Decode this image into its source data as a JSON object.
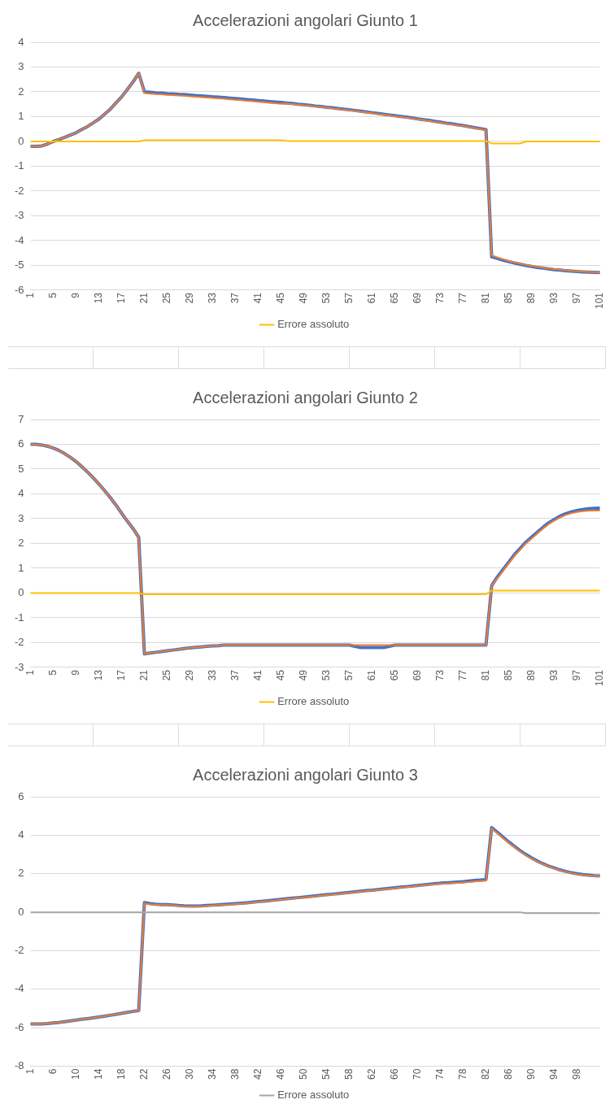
{
  "chart_data": [
    {
      "type": "line",
      "title": "Accelerazioni angolari Giunto 1",
      "categories": [
        "1",
        null,
        null,
        null,
        "5",
        null,
        null,
        null,
        "9",
        null,
        null,
        null,
        "13",
        null,
        null,
        null,
        "17",
        null,
        null,
        null,
        "21",
        null,
        null,
        null,
        "25",
        null,
        null,
        null,
        "29",
        null,
        null,
        null,
        "33",
        null,
        null,
        null,
        "37",
        null,
        null,
        null,
        "41",
        null,
        null,
        null,
        "45",
        null,
        null,
        null,
        "49",
        null,
        null,
        null,
        "53",
        null,
        null,
        null,
        "57",
        null,
        null,
        null,
        "61",
        null,
        null,
        null,
        "65",
        null,
        null,
        null,
        "69",
        null,
        null,
        null,
        "73",
        null,
        null,
        null,
        "77",
        null,
        null,
        null,
        "81",
        null,
        null,
        null,
        "85",
        null,
        null,
        null,
        "89",
        null,
        null,
        null,
        "93",
        null,
        null,
        null,
        "97",
        null,
        null,
        null,
        "101"
      ],
      "ylim": [
        -6,
        4
      ],
      "yticks": [
        -6,
        -5,
        -4,
        -3,
        -2,
        -1,
        0,
        1,
        2,
        3,
        4
      ],
      "grid": "y",
      "legend": "bottom",
      "marker": "none",
      "line_style": "solid",
      "series": [
        {
          "color": "#4472c4",
          "values": [
            -0.2,
            -0.2,
            -0.18,
            -0.1,
            0.0,
            0.08,
            0.17,
            0.26,
            0.35,
            0.48,
            0.6,
            0.75,
            0.9,
            1.1,
            1.3,
            1.55,
            1.8,
            2.1,
            2.4,
            2.75,
            2.0,
            1.98,
            1.96,
            1.95,
            1.93,
            1.92,
            1.9,
            1.89,
            1.87,
            1.85,
            1.84,
            1.82,
            1.8,
            1.79,
            1.77,
            1.75,
            1.73,
            1.71,
            1.69,
            1.67,
            1.65,
            1.63,
            1.61,
            1.59,
            1.57,
            1.55,
            1.53,
            1.5,
            1.48,
            1.46,
            1.43,
            1.41,
            1.38,
            1.36,
            1.33,
            1.3,
            1.28,
            1.25,
            1.22,
            1.19,
            1.16,
            1.13,
            1.1,
            1.07,
            1.04,
            1.01,
            0.98,
            0.95,
            0.91,
            0.88,
            0.85,
            0.81,
            0.78,
            0.74,
            0.71,
            0.67,
            0.64,
            0.6,
            0.56,
            0.52,
            0.48,
            -4.65,
            -4.72,
            -4.79,
            -4.85,
            -4.9,
            -4.95,
            -5.0,
            -5.04,
            -5.08,
            -5.11,
            -5.14,
            -5.17,
            -5.19,
            -5.21,
            -5.23,
            -5.25,
            -5.26,
            -5.27,
            -5.28,
            -5.29
          ]
        },
        {
          "color": "#ed7d31",
          "values": [
            -0.2,
            -0.2,
            -0.18,
            -0.1,
            0.0,
            0.08,
            0.17,
            0.26,
            0.35,
            0.48,
            0.6,
            0.75,
            0.9,
            1.1,
            1.3,
            1.55,
            1.8,
            2.1,
            2.4,
            2.75,
            1.95,
            1.93,
            1.91,
            1.9,
            1.88,
            1.87,
            1.85,
            1.84,
            1.82,
            1.8,
            1.79,
            1.77,
            1.75,
            1.74,
            1.72,
            1.7,
            1.68,
            1.66,
            1.64,
            1.62,
            1.6,
            1.58,
            1.56,
            1.54,
            1.52,
            1.53,
            1.51,
            1.48,
            1.46,
            1.44,
            1.41,
            1.39,
            1.36,
            1.34,
            1.31,
            1.28,
            1.26,
            1.23,
            1.2,
            1.17,
            1.14,
            1.11,
            1.08,
            1.05,
            1.02,
            0.99,
            0.96,
            0.93,
            0.89,
            0.86,
            0.83,
            0.79,
            0.76,
            0.72,
            0.69,
            0.65,
            0.62,
            0.58,
            0.54,
            0.5,
            0.46,
            -4.6,
            -4.68,
            -4.75,
            -4.82,
            -4.88,
            -4.93,
            -4.98,
            -5.02,
            -5.06,
            -5.09,
            -5.12,
            -5.15,
            -5.18,
            -5.2,
            -5.22,
            -5.24,
            -5.25,
            -5.26,
            -5.27,
            -5.28
          ]
        },
        {
          "name": "Errore assoluto",
          "color": "#ffc000",
          "values": [
            0,
            0,
            0,
            0,
            0,
            0,
            0,
            0,
            0,
            0,
            0,
            0,
            0,
            0,
            0,
            0,
            0,
            0,
            0,
            0,
            0.05,
            0.05,
            0.05,
            0.05,
            0.05,
            0.05,
            0.05,
            0.05,
            0.05,
            0.05,
            0.05,
            0.05,
            0.05,
            0.05,
            0.05,
            0.05,
            0.05,
            0.05,
            0.05,
            0.05,
            0.05,
            0.05,
            0.05,
            0.05,
            0.05,
            0.02,
            0.02,
            0.02,
            0.02,
            0.02,
            0.02,
            0.02,
            0.02,
            0.02,
            0.02,
            0.02,
            0.02,
            0.02,
            0.02,
            0.02,
            0.02,
            0.02,
            0.02,
            0.02,
            0.02,
            0.02,
            0.02,
            0.02,
            0.02,
            0.02,
            0.02,
            0.02,
            0.02,
            0.02,
            0.02,
            0.02,
            0.02,
            0.02,
            0.02,
            0.02,
            0.02,
            -0.08,
            -0.08,
            -0.08,
            -0.08,
            -0.08,
            -0.08,
            0,
            0,
            0,
            0,
            0,
            0,
            0,
            0,
            0,
            0,
            0,
            0,
            0,
            0
          ]
        }
      ]
    },
    {
      "type": "line",
      "title": "Accelerazioni angolari Giunto 2",
      "categories": [
        "1",
        null,
        null,
        null,
        "5",
        null,
        null,
        null,
        "9",
        null,
        null,
        null,
        "13",
        null,
        null,
        null,
        "17",
        null,
        null,
        null,
        "21",
        null,
        null,
        null,
        "25",
        null,
        null,
        null,
        "29",
        null,
        null,
        null,
        "33",
        null,
        null,
        null,
        "37",
        null,
        null,
        null,
        "41",
        null,
        null,
        null,
        "45",
        null,
        null,
        null,
        "49",
        null,
        null,
        null,
        "53",
        null,
        null,
        null,
        "57",
        null,
        null,
        null,
        "61",
        null,
        null,
        null,
        "65",
        null,
        null,
        null,
        "69",
        null,
        null,
        null,
        "73",
        null,
        null,
        null,
        "77",
        null,
        null,
        null,
        "81",
        null,
        null,
        null,
        "85",
        null,
        null,
        null,
        "89",
        null,
        null,
        null,
        "93",
        null,
        null,
        null,
        "97",
        null,
        null,
        null,
        "101"
      ],
      "ylim": [
        -3,
        7
      ],
      "yticks": [
        -3,
        -2,
        -1,
        0,
        1,
        2,
        3,
        4,
        5,
        6,
        7
      ],
      "grid": "y",
      "legend": "bottom",
      "marker": "none",
      "line_style": "solid",
      "series": [
        {
          "color": "#4472c4",
          "values": [
            6.0,
            6.0,
            5.97,
            5.92,
            5.85,
            5.75,
            5.62,
            5.47,
            5.3,
            5.1,
            4.88,
            4.65,
            4.4,
            4.13,
            3.85,
            3.55,
            3.22,
            2.9,
            2.6,
            2.25,
            -2.45,
            -2.42,
            -2.39,
            -2.36,
            -2.33,
            -2.3,
            -2.27,
            -2.24,
            -2.21,
            -2.19,
            -2.17,
            -2.15,
            -2.13,
            -2.12,
            -2.1,
            -2.1,
            -2.1,
            -2.1,
            -2.1,
            -2.1,
            -2.1,
            -2.1,
            -2.1,
            -2.1,
            -2.1,
            -2.1,
            -2.1,
            -2.1,
            -2.1,
            -2.1,
            -2.1,
            -2.1,
            -2.1,
            -2.1,
            -2.1,
            -2.1,
            -2.1,
            -2.15,
            -2.2,
            -2.2,
            -2.2,
            -2.2,
            -2.2,
            -2.15,
            -2.1,
            -2.1,
            -2.1,
            -2.1,
            -2.1,
            -2.1,
            -2.1,
            -2.1,
            -2.1,
            -2.1,
            -2.1,
            -2.1,
            -2.1,
            -2.1,
            -2.1,
            -2.1,
            -2.1,
            0.3,
            0.65,
            0.95,
            1.25,
            1.55,
            1.8,
            2.05,
            2.25,
            2.45,
            2.65,
            2.83,
            2.97,
            3.1,
            3.2,
            3.27,
            3.33,
            3.37,
            3.4,
            3.42,
            3.43
          ]
        },
        {
          "color": "#ed7d31",
          "values": [
            6.0,
            6.0,
            5.97,
            5.92,
            5.85,
            5.75,
            5.62,
            5.47,
            5.3,
            5.1,
            4.88,
            4.65,
            4.4,
            4.13,
            3.85,
            3.55,
            3.22,
            2.9,
            2.6,
            2.25,
            -2.45,
            -2.42,
            -2.39,
            -2.36,
            -2.33,
            -2.3,
            -2.27,
            -2.24,
            -2.21,
            -2.19,
            -2.17,
            -2.15,
            -2.13,
            -2.12,
            -2.1,
            -2.1,
            -2.1,
            -2.1,
            -2.1,
            -2.1,
            -2.1,
            -2.1,
            -2.1,
            -2.1,
            -2.1,
            -2.1,
            -2.1,
            -2.1,
            -2.1,
            -2.1,
            -2.1,
            -2.1,
            -2.1,
            -2.1,
            -2.1,
            -2.1,
            -2.1,
            -2.1,
            -2.1,
            -2.1,
            -2.1,
            -2.1,
            -2.1,
            -2.1,
            -2.1,
            -2.1,
            -2.1,
            -2.1,
            -2.1,
            -2.1,
            -2.1,
            -2.1,
            -2.1,
            -2.1,
            -2.1,
            -2.1,
            -2.1,
            -2.1,
            -2.1,
            -2.1,
            -2.1,
            0.3,
            0.6,
            0.9,
            1.2,
            1.5,
            1.75,
            2.0,
            2.2,
            2.4,
            2.6,
            2.78,
            2.92,
            3.05,
            3.15,
            3.22,
            3.27,
            3.3,
            3.32,
            3.33,
            3.33
          ]
        },
        {
          "name": "Errore assoluto",
          "color": "#ffc000",
          "values": [
            0,
            0,
            0,
            0,
            0,
            0,
            0,
            0,
            0,
            0,
            0,
            0,
            0,
            0,
            0,
            0,
            0,
            0,
            0,
            0,
            -0.05,
            -0.05,
            -0.05,
            -0.05,
            -0.05,
            -0.05,
            -0.05,
            -0.05,
            -0.05,
            -0.05,
            -0.05,
            -0.05,
            -0.05,
            -0.05,
            -0.05,
            -0.05,
            -0.05,
            -0.05,
            -0.05,
            -0.05,
            -0.05,
            -0.05,
            -0.05,
            -0.05,
            -0.05,
            -0.05,
            -0.05,
            -0.05,
            -0.05,
            -0.05,
            -0.05,
            -0.05,
            -0.05,
            -0.05,
            -0.05,
            -0.05,
            -0.05,
            -0.05,
            -0.05,
            -0.05,
            -0.05,
            -0.05,
            -0.05,
            -0.05,
            -0.05,
            -0.05,
            -0.05,
            -0.05,
            -0.05,
            -0.05,
            -0.05,
            -0.05,
            -0.05,
            -0.05,
            -0.05,
            -0.05,
            -0.05,
            -0.05,
            -0.05,
            -0.05,
            -0.05,
            0.1,
            0.1,
            0.1,
            0.1,
            0.1,
            0.1,
            0.1,
            0.1,
            0.1,
            0.1,
            0.1,
            0.1,
            0.1,
            0.1,
            0.1,
            0.1,
            0.1,
            0.1,
            0.1,
            0.1
          ]
        }
      ]
    },
    {
      "type": "line",
      "title": "Accelerazioni angolari Giunto 3",
      "categories": [
        "1",
        null,
        null,
        null,
        "6",
        null,
        null,
        null,
        "10",
        null,
        null,
        null,
        "14",
        null,
        null,
        null,
        "18",
        null,
        null,
        null,
        "22",
        null,
        null,
        null,
        "26",
        null,
        null,
        null,
        "30",
        null,
        null,
        null,
        "34",
        null,
        null,
        null,
        "38",
        null,
        null,
        null,
        "42",
        null,
        null,
        null,
        "46",
        null,
        null,
        null,
        "50",
        null,
        null,
        null,
        "54",
        null,
        null,
        null,
        "58",
        null,
        null,
        null,
        "62",
        null,
        null,
        null,
        "66",
        null,
        null,
        null,
        "70",
        null,
        null,
        null,
        "74",
        null,
        null,
        null,
        "78",
        null,
        null,
        null,
        "82",
        null,
        null,
        null,
        "86",
        null,
        null,
        null,
        "90",
        null,
        null,
        null,
        "94",
        null,
        null,
        null,
        "98",
        null,
        null,
        null,
        null
      ],
      "ylim": [
        -8,
        6
      ],
      "yticks": [
        -8,
        -6,
        -4,
        -2,
        0,
        2,
        4,
        6
      ],
      "grid": "y",
      "legend": "bottom",
      "marker": "none",
      "line_style": "solid",
      "series": [
        {
          "color": "#4472c4",
          "values": [
            -5.8,
            -5.8,
            -5.8,
            -5.78,
            -5.75,
            -5.72,
            -5.68,
            -5.64,
            -5.6,
            -5.56,
            -5.52,
            -5.48,
            -5.44,
            -5.4,
            -5.35,
            -5.3,
            -5.25,
            -5.2,
            -5.15,
            -5.1,
            0.5,
            0.45,
            0.42,
            0.4,
            0.4,
            0.38,
            0.35,
            0.33,
            0.32,
            0.32,
            0.33,
            0.35,
            0.37,
            0.39,
            0.41,
            0.43,
            0.45,
            0.47,
            0.49,
            0.52,
            0.55,
            0.58,
            0.61,
            0.64,
            0.67,
            0.7,
            0.73,
            0.76,
            0.79,
            0.82,
            0.85,
            0.88,
            0.91,
            0.94,
            0.97,
            1.0,
            1.03,
            1.06,
            1.09,
            1.12,
            1.15,
            1.18,
            1.21,
            1.24,
            1.27,
            1.3,
            1.33,
            1.36,
            1.39,
            1.42,
            1.45,
            1.48,
            1.51,
            1.53,
            1.55,
            1.57,
            1.59,
            1.62,
            1.65,
            1.67,
            1.7,
            4.4,
            4.15,
            3.9,
            3.65,
            3.42,
            3.2,
            3.0,
            2.82,
            2.66,
            2.52,
            2.4,
            2.3,
            2.2,
            2.12,
            2.05,
            2.0,
            1.96,
            1.93,
            1.9,
            1.88
          ]
        },
        {
          "color": "#ed7d31",
          "values": [
            -5.8,
            -5.8,
            -5.8,
            -5.78,
            -5.75,
            -5.72,
            -5.68,
            -5.64,
            -5.6,
            -5.56,
            -5.52,
            -5.48,
            -5.44,
            -5.4,
            -5.35,
            -5.3,
            -5.25,
            -5.2,
            -5.15,
            -5.1,
            0.45,
            0.42,
            0.4,
            0.38,
            0.38,
            0.36,
            0.33,
            0.31,
            0.3,
            0.3,
            0.31,
            0.33,
            0.35,
            0.37,
            0.39,
            0.41,
            0.43,
            0.45,
            0.47,
            0.5,
            0.53,
            0.56,
            0.59,
            0.62,
            0.65,
            0.68,
            0.71,
            0.74,
            0.77,
            0.8,
            0.83,
            0.86,
            0.89,
            0.92,
            0.95,
            0.98,
            1.01,
            1.04,
            1.07,
            1.1,
            1.13,
            1.16,
            1.19,
            1.22,
            1.25,
            1.28,
            1.31,
            1.34,
            1.37,
            1.4,
            1.43,
            1.45,
            1.47,
            1.49,
            1.51,
            1.53,
            1.55,
            1.57,
            1.6,
            1.62,
            1.64,
            4.35,
            4.1,
            3.85,
            3.6,
            3.38,
            3.16,
            2.96,
            2.78,
            2.63,
            2.5,
            2.38,
            2.28,
            2.18,
            2.1,
            2.03,
            1.98,
            1.94,
            1.91,
            1.88,
            1.86
          ]
        },
        {
          "name": "Errore assoluto",
          "color": "#a5a5a5",
          "values": [
            0,
            0,
            0,
            0,
            0,
            0,
            0,
            0,
            0,
            0,
            0,
            0,
            0,
            0,
            0,
            0,
            0,
            0,
            0,
            0,
            0,
            0,
            0,
            0,
            0,
            0,
            0,
            0,
            0,
            0,
            0,
            0,
            0,
            0,
            0,
            0,
            0,
            0,
            0,
            0,
            0,
            0,
            0,
            0,
            0,
            0,
            0,
            0,
            0,
            0,
            0,
            0,
            0,
            0,
            0,
            0,
            0,
            0,
            0,
            0,
            0,
            0,
            0,
            0,
            0,
            0,
            0,
            0,
            0,
            0,
            0,
            0,
            0,
            0,
            0,
            0,
            0,
            0,
            0,
            0,
            0,
            0,
            0,
            0,
            0,
            0,
            0,
            -0.05,
            -0.05,
            -0.05,
            -0.05,
            -0.05,
            -0.05,
            -0.05,
            -0.05,
            -0.05,
            -0.05,
            -0.05,
            -0.05,
            -0.05,
            -0.05
          ]
        }
      ]
    }
  ]
}
